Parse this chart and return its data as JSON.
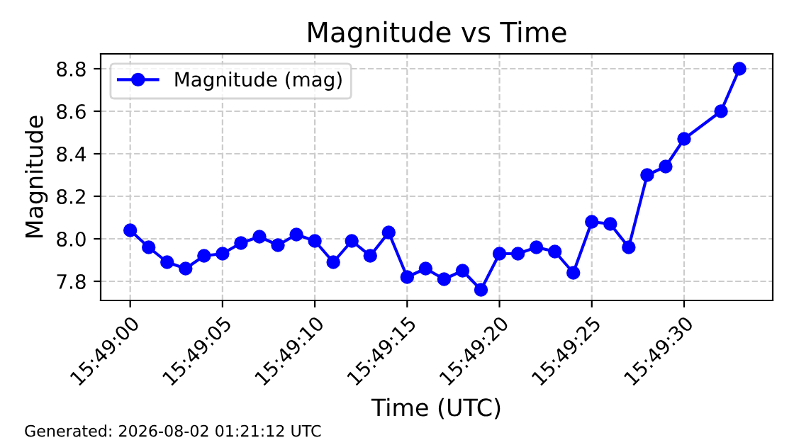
{
  "chart_data": {
    "type": "line",
    "title": "Magnitude vs Time",
    "xlabel": "Time (UTC)",
    "ylabel": "Magnitude",
    "x": [
      15.8166667,
      15.8169444,
      15.8172222,
      15.8175,
      15.8177778,
      15.8180556,
      15.8183333,
      15.8186111,
      15.8188889,
      15.8191667,
      15.8194444,
      15.8197222,
      15.82,
      15.8202778,
      15.8205556,
      15.8208333,
      15.8211111,
      15.8213889,
      15.8216667,
      15.8219444,
      15.8222222,
      15.8225,
      15.8227778,
      15.8230556,
      15.8233333,
      15.8236111,
      15.8238889,
      15.8241667,
      15.8244444,
      15.8247222,
      15.825,
      15.8255556,
      15.8258333
    ],
    "series": [
      {
        "name": "Magnitude (mag)",
        "color": "#0000ff",
        "values": [
          8.04,
          7.96,
          7.89,
          7.86,
          7.92,
          7.93,
          7.98,
          8.01,
          7.97,
          8.02,
          7.99,
          7.89,
          7.99,
          7.92,
          8.03,
          7.82,
          7.86,
          7.81,
          7.85,
          7.76,
          7.93,
          7.93,
          7.96,
          7.94,
          7.84,
          8.08,
          8.07,
          7.96,
          8.3,
          8.34,
          8.47,
          8.6,
          8.8
        ]
      }
    ],
    "xlim": [
      15.8162222,
      15.8263333
    ],
    "xticks": [
      {
        "value": 15.8166667,
        "label": "15:49:00"
      },
      {
        "value": 15.8180556,
        "label": "15:49:05"
      },
      {
        "value": 15.8194444,
        "label": "15:49:10"
      },
      {
        "value": 15.8208333,
        "label": "15:49:15"
      },
      {
        "value": 15.8222222,
        "label": "15:49:20"
      },
      {
        "value": 15.8236111,
        "label": "15:49:25"
      },
      {
        "value": 15.825,
        "label": "15:49:30"
      }
    ],
    "ylim": [
      7.71,
      8.87
    ],
    "yticks": [
      7.8,
      {
        "value": 8,
        "label": "8.0"
      },
      8.2,
      8.4,
      8.6,
      8.8
    ],
    "grid": true,
    "legend": "top left",
    "marker": "circle",
    "line_style": "solid",
    "annotations": [
      "Generated: 2026-08-02 01:21:12 UTC"
    ]
  }
}
